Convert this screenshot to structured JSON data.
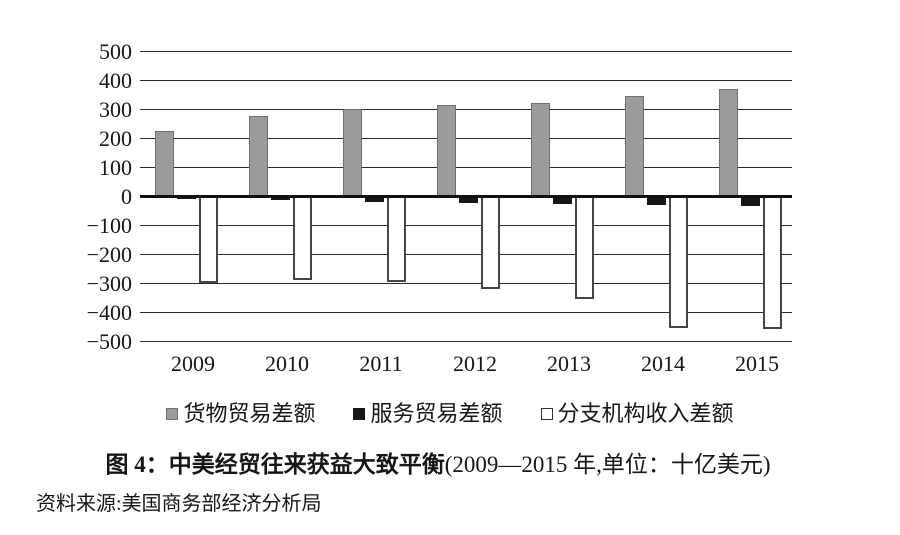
{
  "chart_data": {
    "type": "bar",
    "title": "图 4：中美经贸往来获益大致平衡",
    "subtitle": "(2009—2015 年,单位：十亿美元)",
    "unit": "十亿美元",
    "categories": [
      "2009",
      "2010",
      "2011",
      "2012",
      "2013",
      "2014",
      "2015"
    ],
    "series": [
      {
        "key": "goods-trade-balance",
        "name": "货物贸易差额",
        "color": "#9b9b9b",
        "border_color": "#6f6f6f",
        "values": [
          225,
          275,
          300,
          315,
          320,
          345,
          370
        ]
      },
      {
        "key": "services-trade-balance",
        "name": "服务贸易差额",
        "color": "#161616",
        "border_color": "#161616",
        "values": [
          -10,
          -15,
          -20,
          -23,
          -27,
          -32,
          -36
        ]
      },
      {
        "key": "affiliate-income-balance",
        "name": "分支机构收入差额",
        "color": "#ffffff",
        "border_color": "#454545",
        "values": [
          -300,
          -290,
          -295,
          -320,
          -355,
          -455,
          -460
        ]
      }
    ],
    "ylim": [
      -500,
      500
    ],
    "ytick_interval": 100,
    "yticks": [
      "500",
      "400",
      "300",
      "200",
      "100",
      "0",
      "−100",
      "−200",
      "−300",
      "−400",
      "−500"
    ],
    "grid": true,
    "legend_position": "bottom"
  },
  "caption": {
    "label": "图 4：",
    "title": "中美经贸往来获益大致平衡",
    "detail": "(2009—2015 年,单位：十亿美元)"
  },
  "source": {
    "label": "资料来源:",
    "text": "美国商务部经济分析局"
  }
}
